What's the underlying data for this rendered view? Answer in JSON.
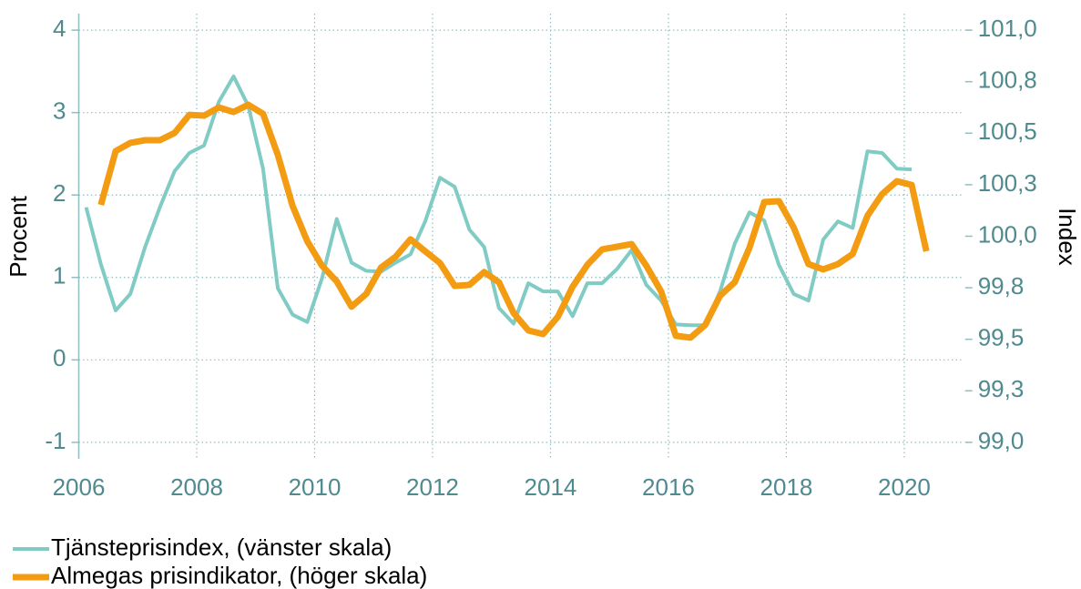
{
  "chart_data": {
    "type": "line",
    "xlabel": null,
    "ylabel": "Procent",
    "y2label": "Index",
    "xlim": [
      2006,
      2021
    ],
    "xticks": [
      2006,
      2008,
      2010,
      2012,
      2014,
      2016,
      2018,
      2020
    ],
    "ylim": [
      -1.2,
      4.2
    ],
    "yticks": [
      -1,
      0,
      1,
      2,
      3,
      4
    ],
    "y2lim": [
      98.92,
      101.08
    ],
    "y2ticks": [
      {
        "value": 99,
        "label": "99,0"
      },
      {
        "value": 99.25,
        "label": "99,3"
      },
      {
        "value": 99.5,
        "label": "99,5"
      },
      {
        "value": 99.75,
        "label": "99,8"
      },
      {
        "value": 100,
        "label": "100,0"
      },
      {
        "value": 100.25,
        "label": "100,3"
      },
      {
        "value": 100.5,
        "label": "100,5"
      },
      {
        "value": 100.75,
        "label": "100,8"
      },
      {
        "value": 101,
        "label": "101,0"
      }
    ],
    "grid": true,
    "legend": "bottom-left",
    "series": [
      {
        "name": "Tjänsteprisindex, (vänster skala)",
        "color": "#80cbc4",
        "width": 4,
        "x": [
          2006.125,
          2006.375,
          2006.625,
          2006.875,
          2007.125,
          2007.375,
          2007.625,
          2007.875,
          2008.125,
          2008.375,
          2008.625,
          2008.875,
          2009.125,
          2009.375,
          2009.625,
          2009.875,
          2010.125,
          2010.375,
          2010.625,
          2010.875,
          2011.125,
          2011.375,
          2011.625,
          2011.875,
          2012.125,
          2012.375,
          2012.625,
          2012.875,
          2013.125,
          2013.375,
          2013.625,
          2013.875,
          2014.125,
          2014.375,
          2014.625,
          2014.875,
          2015.125,
          2015.375,
          2015.625,
          2015.875,
          2016.125,
          2016.375,
          2016.625,
          2016.875,
          2017.125,
          2017.375,
          2017.625,
          2017.875,
          2018.125,
          2018.375,
          2018.625,
          2018.875,
          2019.125,
          2019.375,
          2019.625,
          2019.875,
          2020.125
        ],
        "values": [
          1.85,
          1.16,
          0.6,
          0.8,
          1.37,
          1.85,
          2.29,
          2.51,
          2.6,
          3.13,
          3.44,
          3.08,
          2.32,
          0.87,
          0.55,
          0.46,
          0.99,
          1.71,
          1.18,
          1.08,
          1.07,
          1.18,
          1.28,
          1.68,
          2.21,
          2.1,
          1.58,
          1.37,
          0.63,
          0.44,
          0.93,
          0.83,
          0.83,
          0.53,
          0.93,
          0.93,
          1.1,
          1.33,
          0.91,
          0.72,
          0.43,
          0.42,
          0.42,
          0.83,
          1.41,
          1.79,
          1.69,
          1.15,
          0.8,
          0.72,
          1.46,
          1.68,
          1.6,
          2.53,
          2.51,
          2.32,
          2.31
        ]
      },
      {
        "name": "Almegas prisindikator, (höger skala)",
        "color": "#f39c12",
        "width": 7,
        "axis": "y2",
        "x": [
          2006.375,
          2006.625,
          2006.875,
          2007.125,
          2007.375,
          2007.625,
          2007.875,
          2008.125,
          2008.375,
          2008.625,
          2008.875,
          2009.125,
          2009.375,
          2009.625,
          2009.875,
          2010.125,
          2010.375,
          2010.625,
          2010.875,
          2011.125,
          2011.375,
          2011.625,
          2011.875,
          2012.125,
          2012.375,
          2012.625,
          2012.875,
          2013.125,
          2013.375,
          2013.625,
          2013.875,
          2014.125,
          2014.375,
          2014.625,
          2014.875,
          2015.125,
          2015.375,
          2015.625,
          2015.875,
          2016.125,
          2016.375,
          2016.625,
          2016.875,
          2017.125,
          2017.375,
          2017.625,
          2017.875,
          2018.125,
          2018.375,
          2018.625,
          2018.875,
          2019.125,
          2019.375,
          2019.625,
          2019.875,
          2020.125,
          2020.375
        ],
        "values": [
          100.152,
          100.413,
          100.453,
          100.466,
          100.466,
          100.501,
          100.589,
          100.585,
          100.625,
          100.603,
          100.638,
          100.594,
          100.395,
          100.148,
          99.976,
          99.857,
          99.781,
          99.658,
          99.72,
          99.848,
          99.901,
          99.985,
          99.927,
          99.87,
          99.759,
          99.764,
          99.826,
          99.777,
          99.627,
          99.543,
          99.525,
          99.609,
          99.755,
          99.861,
          99.936,
          99.949,
          99.962,
          99.857,
          99.733,
          99.517,
          99.508,
          99.57,
          99.711,
          99.777,
          99.945,
          100.166,
          100.17,
          100.042,
          99.865,
          99.839,
          99.865,
          99.914,
          100.099,
          100.205,
          100.267,
          100.249,
          99.927
        ]
      }
    ]
  }
}
